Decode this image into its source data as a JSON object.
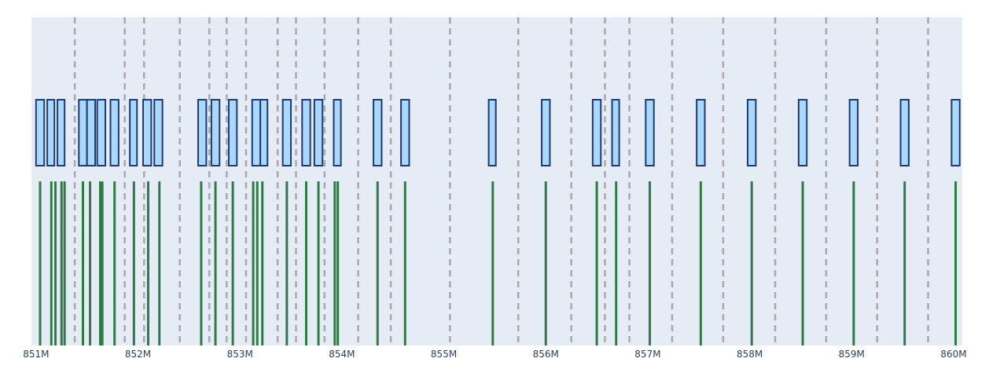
{
  "chart_data": {
    "type": "genome-track",
    "title": "",
    "xlabel": "",
    "ylabel": "",
    "x_range": [
      850955000,
      860085000
    ],
    "x_ticks": [
      {
        "value": 851000000,
        "label": "851M"
      },
      {
        "value": 852000000,
        "label": "852M"
      },
      {
        "value": 853000000,
        "label": "853M"
      },
      {
        "value": 854000000,
        "label": "854M"
      },
      {
        "value": 855000000,
        "label": "855M"
      },
      {
        "value": 856000000,
        "label": "856M"
      },
      {
        "value": 857000000,
        "label": "857M"
      },
      {
        "value": 858000000,
        "label": "858M"
      },
      {
        "value": 859000000,
        "label": "859M"
      },
      {
        "value": 860000000,
        "label": "860M"
      }
    ],
    "grid": false,
    "colors": {
      "plot_background": "#e5ecf6",
      "box_fill": "#aad8fa",
      "box_stroke": "#1f3a73",
      "site_line": "#2e7b48",
      "boundary_line": "#a9a9a9",
      "tick_text": "#2a3f5f"
    },
    "series": [
      {
        "type": "boxes",
        "intervals": [
          [
            851000000,
            851080000
          ],
          [
            851110000,
            851180000
          ],
          [
            851210000,
            851280000
          ],
          [
            851420000,
            851500000
          ],
          [
            851500000,
            851580000
          ],
          [
            851600000,
            851680000
          ],
          [
            851730000,
            851810000
          ],
          [
            851920000,
            851990000
          ],
          [
            852050000,
            852130000
          ],
          [
            852160000,
            852240000
          ],
          [
            852590000,
            852670000
          ],
          [
            852720000,
            852800000
          ],
          [
            852890000,
            852970000
          ],
          [
            853120000,
            853200000
          ],
          [
            853200000,
            853270000
          ],
          [
            853420000,
            853500000
          ],
          [
            853610000,
            853690000
          ],
          [
            853730000,
            853810000
          ],
          [
            853920000,
            853990000
          ],
          [
            854310000,
            854390000
          ],
          [
            854580000,
            854660000
          ],
          [
            855440000,
            855510000
          ],
          [
            855960000,
            856040000
          ],
          [
            856460000,
            856540000
          ],
          [
            856650000,
            856720000
          ],
          [
            856980000,
            857060000
          ],
          [
            857480000,
            857560000
          ],
          [
            857980000,
            858060000
          ],
          [
            858480000,
            858560000
          ],
          [
            858980000,
            859060000
          ],
          [
            859480000,
            859560000
          ],
          [
            859980000,
            860060000
          ]
        ]
      },
      {
        "type": "sites",
        "positions": [
          851040000,
          851150000,
          851190000,
          851250000,
          851280000,
          851460000,
          851530000,
          851630000,
          851650000,
          851770000,
          851960000,
          852100000,
          852210000,
          852620000,
          852760000,
          852930000,
          853130000,
          853170000,
          853220000,
          853460000,
          853650000,
          853770000,
          853930000,
          853960000,
          854350000,
          854620000,
          855480000,
          856000000,
          856500000,
          856690000,
          857020000,
          857520000,
          858020000,
          858520000,
          859020000,
          859520000,
          860020000
        ]
      },
      {
        "type": "boundaries",
        "positions": [
          851380000,
          851870000,
          852060000,
          852410000,
          852700000,
          852870000,
          853060000,
          853370000,
          853550000,
          853830000,
          854160000,
          854480000,
          855060000,
          855730000,
          856250000,
          856580000,
          856820000,
          857240000,
          857740000,
          858250000,
          858750000,
          859250000,
          859750000
        ]
      }
    ]
  }
}
